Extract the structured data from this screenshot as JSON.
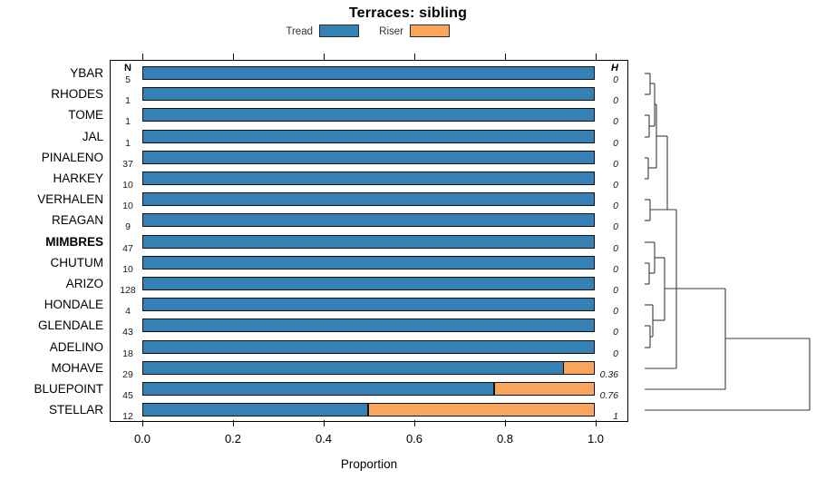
{
  "title": "Terraces: sibling",
  "legend": {
    "items": [
      {
        "name": "Tread",
        "color": "#3580B5"
      },
      {
        "name": "Riser",
        "color": "#F9A55C"
      }
    ]
  },
  "columns": {
    "n_header": "N",
    "h_header": "H"
  },
  "axis": {
    "xlabel": "Proportion",
    "x_ticks": [
      "0.0",
      "0.2",
      "0.4",
      "0.6",
      "0.8",
      "1.0"
    ]
  },
  "colors": {
    "tread": "#3580B5",
    "riser": "#F9A55C",
    "line": "#3a3a3a"
  },
  "chart_data": {
    "type": "bar",
    "stacked": true,
    "orientation": "horizontal",
    "title": "Terraces: sibling",
    "xlabel": "Proportion",
    "xlim": [
      0,
      1
    ],
    "x_ticks": [
      0,
      0.2,
      0.4,
      0.6,
      0.8,
      1.0
    ],
    "series_names": [
      "Tread",
      "Riser"
    ],
    "categories": [
      "YBAR",
      "RHODES",
      "TOME",
      "JAL",
      "PINALENO",
      "HARKEY",
      "VERHALEN",
      "REAGAN",
      "MIMBRES",
      "CHUTUM",
      "ARIZO",
      "HONDALE",
      "GLENDALE",
      "ADELINO",
      "MOHAVE",
      "BLUEPOINT",
      "STELLAR"
    ],
    "rows": [
      {
        "name": "YBAR",
        "n": 5,
        "tread": 1.0,
        "riser": 0.0,
        "h": "0",
        "bold": false
      },
      {
        "name": "RHODES",
        "n": 1,
        "tread": 1.0,
        "riser": 0.0,
        "h": "0",
        "bold": false
      },
      {
        "name": "TOME",
        "n": 1,
        "tread": 1.0,
        "riser": 0.0,
        "h": "0",
        "bold": false
      },
      {
        "name": "JAL",
        "n": 1,
        "tread": 1.0,
        "riser": 0.0,
        "h": "0",
        "bold": false
      },
      {
        "name": "PINALENO",
        "n": 37,
        "tread": 1.0,
        "riser": 0.0,
        "h": "0",
        "bold": false
      },
      {
        "name": "HARKEY",
        "n": 10,
        "tread": 1.0,
        "riser": 0.0,
        "h": "0",
        "bold": false
      },
      {
        "name": "VERHALEN",
        "n": 10,
        "tread": 1.0,
        "riser": 0.0,
        "h": "0",
        "bold": false
      },
      {
        "name": "REAGAN",
        "n": 9,
        "tread": 1.0,
        "riser": 0.0,
        "h": "0",
        "bold": false
      },
      {
        "name": "MIMBRES",
        "n": 47,
        "tread": 1.0,
        "riser": 0.0,
        "h": "0",
        "bold": true
      },
      {
        "name": "CHUTUM",
        "n": 10,
        "tread": 1.0,
        "riser": 0.0,
        "h": "0",
        "bold": false
      },
      {
        "name": "ARIZO",
        "n": 128,
        "tread": 1.0,
        "riser": 0.0,
        "h": "0",
        "bold": false
      },
      {
        "name": "HONDALE",
        "n": 4,
        "tread": 1.0,
        "riser": 0.0,
        "h": "0",
        "bold": false
      },
      {
        "name": "GLENDALE",
        "n": 43,
        "tread": 1.0,
        "riser": 0.0,
        "h": "0",
        "bold": false
      },
      {
        "name": "ADELINO",
        "n": 18,
        "tread": 1.0,
        "riser": 0.0,
        "h": "0",
        "bold": false
      },
      {
        "name": "MOHAVE",
        "n": 29,
        "tread": 0.931,
        "riser": 0.069,
        "h": "0.36",
        "bold": false
      },
      {
        "name": "BLUEPOINT",
        "n": 45,
        "tread": 0.778,
        "riser": 0.222,
        "h": "0.76",
        "bold": false
      },
      {
        "name": "STELLAR",
        "n": 12,
        "tread": 0.5,
        "riser": 0.5,
        "h": "1",
        "bold": false
      }
    ]
  },
  "dendrogram": {
    "segments": [
      [
        711,
        81,
        717,
        81
      ],
      [
        711,
        104,
        717,
        104
      ],
      [
        717,
        81,
        717,
        104
      ],
      [
        717,
        92,
        722,
        92
      ],
      [
        711,
        127,
        716,
        127
      ],
      [
        711,
        151,
        716,
        151
      ],
      [
        716,
        127,
        716,
        151
      ],
      [
        716,
        139,
        722,
        139
      ],
      [
        722,
        92,
        722,
        139
      ],
      [
        722,
        115,
        724,
        115
      ],
      [
        711,
        174,
        715,
        174
      ],
      [
        711,
        197,
        715,
        197
      ],
      [
        715,
        174,
        715,
        197
      ],
      [
        715,
        185,
        724,
        185
      ],
      [
        724,
        115,
        724,
        185
      ],
      [
        724,
        150,
        736,
        150
      ],
      [
        711,
        220,
        717,
        220
      ],
      [
        711,
        243,
        717,
        243
      ],
      [
        717,
        220,
        717,
        243
      ],
      [
        717,
        231,
        746,
        231
      ],
      [
        736,
        150,
        736,
        231
      ],
      [
        711,
        267,
        722,
        267
      ],
      [
        711,
        290,
        716,
        290
      ],
      [
        711,
        313,
        716,
        313
      ],
      [
        716,
        290,
        716,
        313
      ],
      [
        716,
        301,
        722,
        301
      ],
      [
        722,
        267,
        722,
        301
      ],
      [
        722,
        284,
        733,
        284
      ],
      [
        711,
        336,
        720,
        336
      ],
      [
        711,
        359,
        717,
        359
      ],
      [
        711,
        383,
        717,
        383
      ],
      [
        717,
        359,
        717,
        383
      ],
      [
        717,
        371,
        720,
        371
      ],
      [
        720,
        336,
        720,
        371
      ],
      [
        720,
        353,
        733,
        353
      ],
      [
        733,
        284,
        733,
        353
      ],
      [
        733,
        318,
        800,
        318
      ],
      [
        746,
        231,
        746,
        406
      ],
      [
        711,
        406,
        746,
        406
      ],
      [
        800,
        318,
        800,
        429
      ],
      [
        711,
        429,
        800,
        429
      ],
      [
        800,
        373,
        893,
        373
      ],
      [
        893,
        373,
        893,
        452
      ],
      [
        711,
        452,
        893,
        452
      ]
    ]
  }
}
